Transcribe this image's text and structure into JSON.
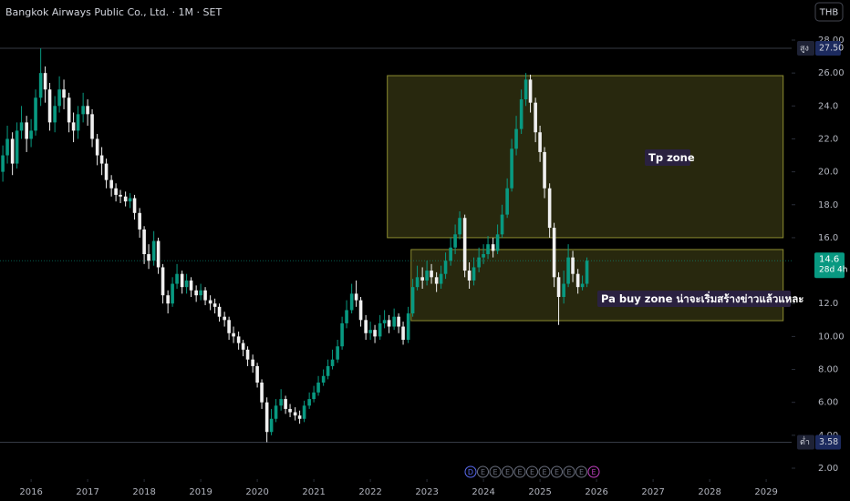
{
  "chart_data": {
    "type": "candlestick",
    "title": "Bangkok Airways Public Co., Ltd. · 1M · SET",
    "currency": "THB",
    "up_color": "#089981",
    "down_color": "#f0f0f0",
    "xlim": [
      2015.45,
      2029.45
    ],
    "xticks": [
      2016,
      2017,
      2018,
      2019,
      2020,
      2021,
      2022,
      2023,
      2024,
      2025,
      2026,
      2027,
      2028,
      2029
    ],
    "ylim": [
      1.2,
      28.7
    ],
    "yticks": [
      {
        "value": 2,
        "label": "2.00"
      },
      {
        "value": 4,
        "label": "4.00"
      },
      {
        "value": 6,
        "label": "6.00"
      },
      {
        "value": 8,
        "label": "8.00"
      },
      {
        "value": 10,
        "label": "10.00"
      },
      {
        "value": 12,
        "label": "12.0"
      },
      {
        "value": 16,
        "label": "16.0"
      },
      {
        "value": 18,
        "label": "18.0"
      },
      {
        "value": 20,
        "label": "20.0"
      },
      {
        "value": 22,
        "label": "22.0"
      },
      {
        "value": 24,
        "label": "24.0"
      },
      {
        "value": 26,
        "label": "26.00"
      },
      {
        "value": 28,
        "label": "28.00"
      }
    ],
    "x": [
      2015.5,
      2015.58,
      2015.67,
      2015.75,
      2015.83,
      2015.92,
      2016.0,
      2016.08,
      2016.17,
      2016.25,
      2016.33,
      2016.42,
      2016.5,
      2016.58,
      2016.67,
      2016.75,
      2016.83,
      2016.92,
      2017.0,
      2017.08,
      2017.17,
      2017.25,
      2017.33,
      2017.42,
      2017.5,
      2017.58,
      2017.67,
      2017.75,
      2017.83,
      2017.92,
      2018.0,
      2018.08,
      2018.17,
      2018.25,
      2018.33,
      2018.42,
      2018.5,
      2018.58,
      2018.67,
      2018.75,
      2018.83,
      2018.92,
      2019.0,
      2019.08,
      2019.17,
      2019.25,
      2019.33,
      2019.42,
      2019.5,
      2019.58,
      2019.67,
      2019.75,
      2019.83,
      2019.92,
      2020.0,
      2020.08,
      2020.17,
      2020.25,
      2020.33,
      2020.42,
      2020.5,
      2020.58,
      2020.67,
      2020.75,
      2020.83,
      2020.92,
      2021.0,
      2021.08,
      2021.17,
      2021.25,
      2021.33,
      2021.42,
      2021.5,
      2021.58,
      2021.67,
      2021.75,
      2021.83,
      2021.92,
      2022.0,
      2022.08,
      2022.17,
      2022.25,
      2022.33,
      2022.42,
      2022.5,
      2022.58,
      2022.67,
      2022.75,
      2022.83,
      2022.92,
      2023.0,
      2023.08,
      2023.17,
      2023.25,
      2023.33,
      2023.42,
      2023.5,
      2023.58,
      2023.67,
      2023.75,
      2023.83,
      2023.92,
      2024.0,
      2024.08,
      2024.17,
      2024.25,
      2024.33,
      2024.42,
      2024.5,
      2024.58,
      2024.67,
      2024.75,
      2024.83,
      2024.92,
      2025.0,
      2025.08,
      2025.17,
      2025.25,
      2025.33,
      2025.42,
      2025.5,
      2025.58,
      2025.67,
      2025.75,
      2025.83
    ],
    "open": [
      20,
      21,
      22,
      20.5,
      22.5,
      23,
      22,
      22.5,
      24.5,
      26,
      25,
      23,
      24,
      25,
      24.5,
      23,
      22.5,
      23.5,
      24,
      23.5,
      22,
      21,
      20.5,
      19.5,
      19,
      18.6,
      18.5,
      18.2,
      18.4,
      17.5,
      16.5,
      15,
      14.6,
      15.8,
      14.2,
      12.5,
      12,
      13.2,
      13.8,
      13,
      13.4,
      12.8,
      12.5,
      12.8,
      12.2,
      12,
      11.8,
      11.2,
      11,
      10.2,
      10,
      9.6,
      9.2,
      8.6,
      8.2,
      7.2,
      6,
      4.2,
      5,
      5.8,
      6.2,
      5.6,
      5.4,
      5.2,
      5,
      5.8,
      6.2,
      6.6,
      7.2,
      7.6,
      8.2,
      8.6,
      9.4,
      10.8,
      11.6,
      12.6,
      12.2,
      11,
      10.2,
      10.4,
      10,
      10.8,
      11,
      10.6,
      11.2,
      10.6,
      9.8,
      11.4,
      13,
      13.6,
      13.4,
      14,
      13.6,
      13.2,
      13.8,
      14.6,
      15.4,
      16.2,
      17.2,
      14,
      13.4,
      14.2,
      14.8,
      15,
      15.6,
      15.2,
      16.2,
      17.4,
      19,
      21.4,
      22.6,
      24.4,
      25.6,
      24.2,
      22.4,
      21.2,
      19,
      16.6,
      13.6,
      12.4,
      13.2,
      14.8,
      13.8,
      13,
      13.2
    ],
    "high": [
      21.6,
      22.8,
      22.4,
      23,
      24,
      23.4,
      23.2,
      25,
      27.5,
      26.4,
      25.4,
      24.6,
      25.8,
      25.6,
      24.8,
      23.6,
      24,
      24.8,
      24.4,
      23.8,
      22.3,
      21.5,
      20.8,
      19.8,
      19.3,
      18.9,
      18.8,
      18.7,
      18.6,
      17.8,
      16.7,
      15.6,
      16.4,
      16,
      14.4,
      12.8,
      13.6,
      14.4,
      14,
      13.8,
      13.6,
      13.1,
      13.2,
      13,
      12.5,
      12.3,
      12,
      11.5,
      11.2,
      10.6,
      10.3,
      9.8,
      9.4,
      8.9,
      8.4,
      7.4,
      6.3,
      5.6,
      6.2,
      6.8,
      6.4,
      5.9,
      5.7,
      5.5,
      6.1,
      6.6,
      7,
      7.6,
      8,
      8.6,
      9.2,
      9.8,
      11.2,
      12.2,
      13.2,
      13.4,
      12.4,
      11.3,
      10.9,
      10.7,
      11.3,
      11.6,
      11.3,
      11.7,
      11.4,
      10.9,
      11.8,
      13.5,
      14.3,
      14.2,
      14.6,
      14.4,
      13.9,
      14.3,
      15.1,
      16,
      16.8,
      17.6,
      17.4,
      14.5,
      14.8,
      15.4,
      15.6,
      16.1,
      16,
      16.8,
      18,
      19.6,
      22,
      23.4,
      25,
      26,
      25.9,
      24.5,
      22.8,
      21.5,
      19.3,
      16.9,
      13.9,
      14,
      15.6,
      15.2,
      14.1,
      13.7,
      14.8
    ],
    "low": [
      19.4,
      20.5,
      19.8,
      20.2,
      22,
      21.2,
      21.5,
      22.2,
      24,
      24.2,
      22.5,
      22.4,
      23.6,
      23.8,
      22.4,
      21.8,
      22,
      23,
      22.8,
      21.5,
      20.4,
      19.8,
      19,
      18.5,
      18.2,
      18.1,
      17.9,
      17.8,
      17.1,
      16,
      14.4,
      14.1,
      14.3,
      13.8,
      12,
      11.4,
      11.8,
      12.9,
      12.6,
      12.6,
      12.4,
      12.1,
      12.2,
      11.9,
      11.6,
      11.4,
      10.9,
      10.6,
      9.8,
      9.6,
      9.2,
      8.8,
      8.2,
      7.8,
      6.9,
      5.6,
      3.58,
      4,
      4.8,
      5.5,
      5.3,
      5.1,
      4.9,
      4.7,
      4.8,
      5.6,
      6,
      6.4,
      7,
      7.4,
      8,
      8.4,
      9.2,
      10.5,
      11.4,
      11.8,
      10.6,
      9.8,
      9.8,
      9.6,
      9.8,
      10.5,
      10.2,
      10.4,
      10.2,
      9.5,
      9.6,
      11.2,
      12.8,
      12.9,
      13.1,
      13.2,
      12.7,
      12.9,
      13.5,
      14.3,
      15,
      15.9,
      13.6,
      12.9,
      13.1,
      13.9,
      14.4,
      14.7,
      14.8,
      15,
      16,
      17.2,
      18.8,
      21,
      22.3,
      24,
      23.6,
      21.8,
      20.6,
      18.4,
      16,
      13,
      10.7,
      12,
      13,
      13.3,
      12.6,
      12.8,
      13
    ],
    "close": [
      21,
      22,
      20.5,
      22.5,
      23,
      22,
      22.5,
      24.5,
      26,
      25,
      23,
      24,
      25,
      24.5,
      23,
      22.5,
      23.5,
      24,
      23.5,
      22,
      21,
      20.5,
      19.5,
      19,
      18.6,
      18.5,
      18.2,
      18.4,
      17.5,
      16.5,
      15,
      14.6,
      15.8,
      14.2,
      12.5,
      12,
      13.2,
      13.8,
      13,
      13.4,
      12.8,
      12.5,
      12.8,
      12.2,
      12,
      11.8,
      11.2,
      11,
      10.2,
      10,
      9.6,
      9.2,
      8.6,
      8.2,
      7.2,
      6,
      4.2,
      5,
      5.8,
      6.2,
      5.6,
      5.4,
      5.2,
      5,
      5.8,
      6.2,
      6.6,
      7.2,
      7.6,
      8.2,
      8.6,
      9.4,
      10.8,
      11.6,
      12.6,
      12.2,
      11,
      10.2,
      10.4,
      10,
      10.8,
      11,
      10.6,
      11.2,
      10.6,
      9.8,
      11.4,
      13,
      13.6,
      13.4,
      14,
      13.6,
      13.2,
      13.8,
      14.6,
      15.4,
      16.2,
      17.2,
      14,
      13.4,
      14.2,
      14.8,
      15,
      15.6,
      15.2,
      16.2,
      17.4,
      19,
      21.4,
      22.6,
      24.4,
      25.6,
      24.2,
      22.4,
      21.2,
      19,
      16.6,
      13.6,
      12.4,
      13.2,
      14.8,
      13.8,
      13,
      13.2,
      14.6
    ],
    "high_marker": {
      "label": "สูง",
      "value": 27.5,
      "value_label": "27.50"
    },
    "low_marker": {
      "label": "ต่ำ",
      "value": 3.58
    },
    "current": {
      "value": 14.6,
      "countdown": "28d 4h"
    },
    "zones": [
      {
        "label": "Tp zone",
        "x": [
          2022.3,
          2029.3
        ],
        "y": [
          16,
          25.84
        ]
      },
      {
        "label": "Pa buy zone น่าจะเริ่มสร้างข่าวแล้วแหละ",
        "x": [
          2022.72,
          2029.3
        ],
        "y": [
          10.96,
          15.28
        ]
      }
    ],
    "events": [
      "D",
      "E",
      "E",
      "E",
      "E",
      "E",
      "E",
      "E",
      "E",
      "E",
      "E"
    ]
  }
}
